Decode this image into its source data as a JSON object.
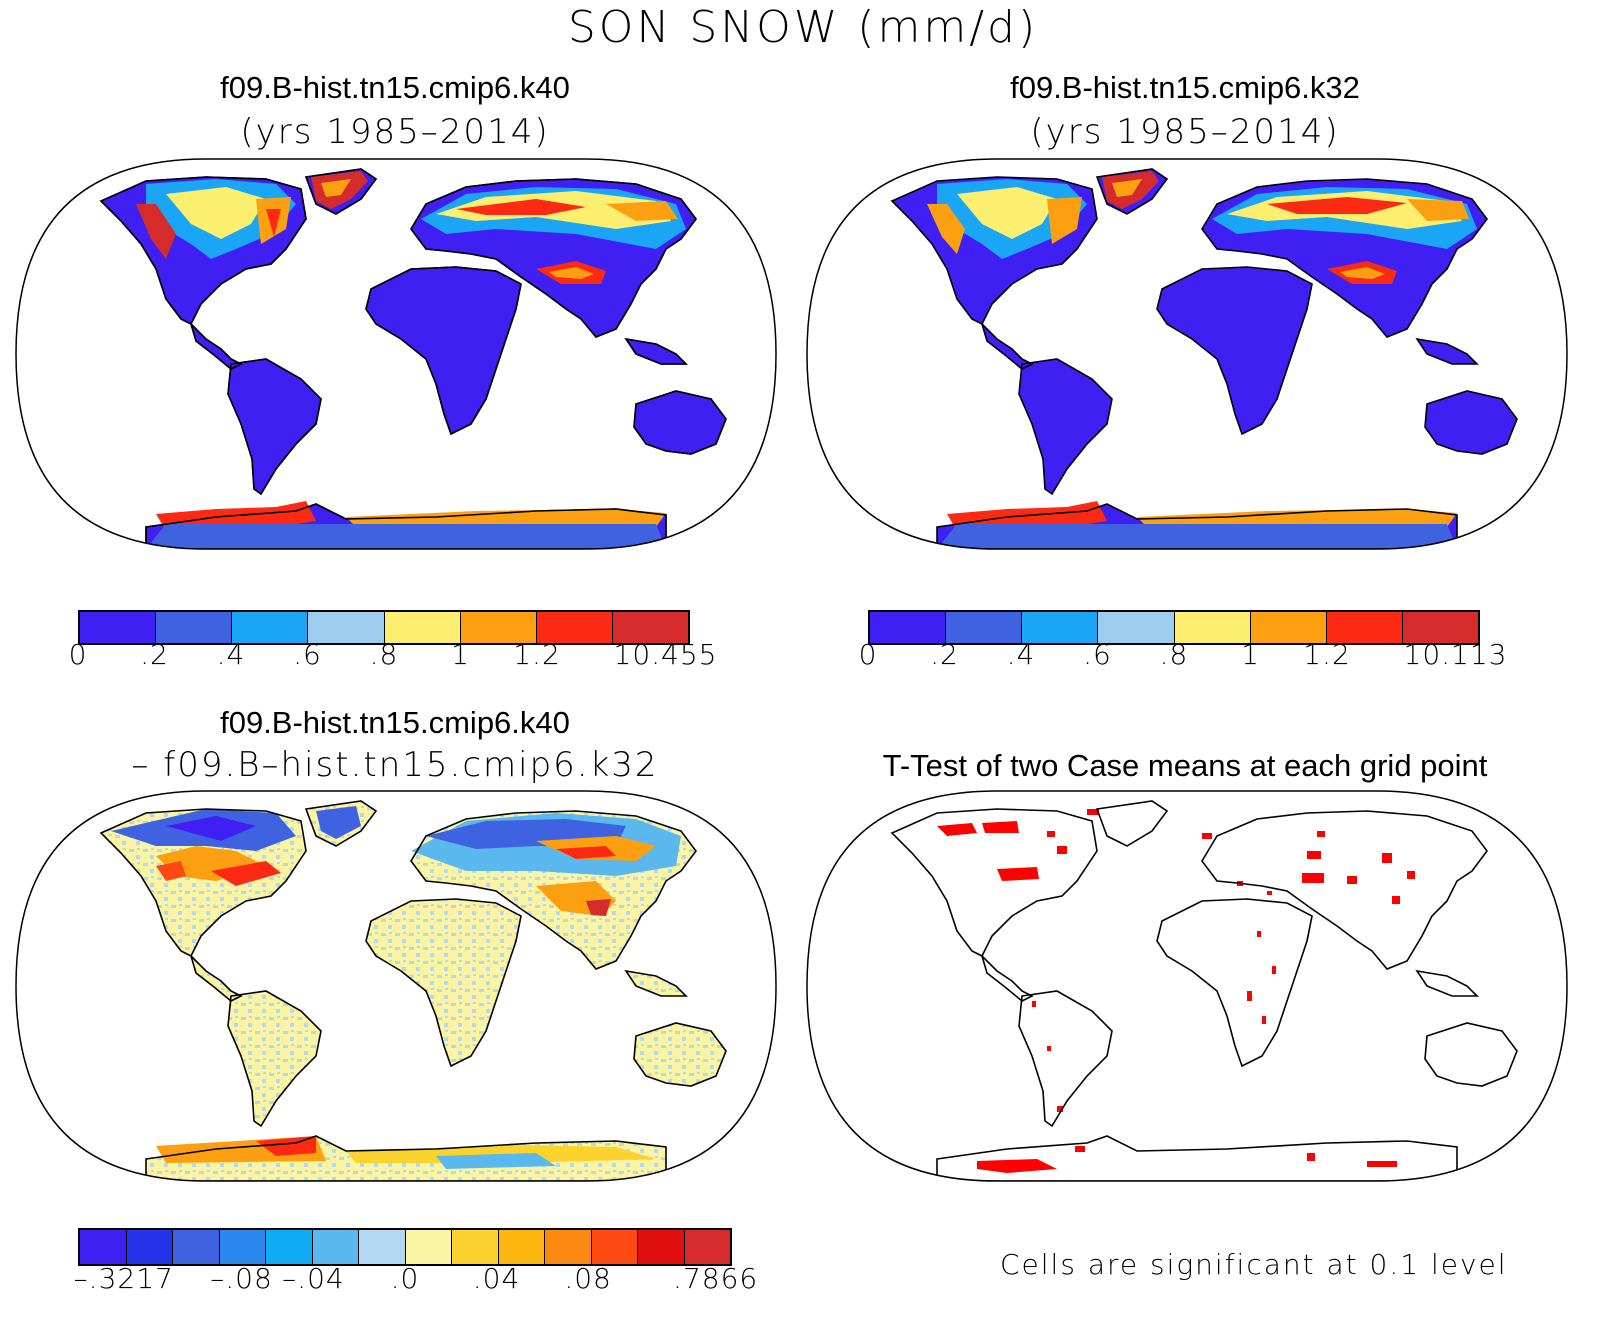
{
  "title": "SON SNOW (mm/d)",
  "panels": {
    "top_left": {
      "title": "f09.B-hist.tn15.cmip6.k40",
      "subtitle": "(yrs 1985–2014)"
    },
    "top_right": {
      "title": "f09.B-hist.tn15.cmip6.k32",
      "subtitle": "(yrs 1985–2014)"
    },
    "bottom_left": {
      "title": "f09.B-hist.tn15.cmip6.k40",
      "subtitle": "– f09.B–hist.tn15.cmip6.k32"
    },
    "bottom_right": {
      "title": "T-Test of two Case means at each grid point",
      "footnote": "Cells are significant at 0.1 level"
    }
  },
  "colorbars": {
    "top_left": {
      "colors": [
        "#3f1ff2",
        "#3f63e0",
        "#1aa6f5",
        "#9dcdee",
        "#fcef70",
        "#fca012",
        "#fc2a12",
        "#d62b2b"
      ],
      "labels": [
        "0",
        ".2",
        ".4",
        ".6",
        ".8",
        "1",
        "1.2",
        "10.455"
      ]
    },
    "top_right": {
      "colors": [
        "#3f1ff2",
        "#3f63e0",
        "#1aa6f5",
        "#9dcdee",
        "#fcef70",
        "#fca012",
        "#fc2a12",
        "#d62b2b"
      ],
      "labels": [
        "0",
        ".2",
        ".4",
        ".6",
        ".8",
        "1",
        "1.2",
        "10.113"
      ]
    },
    "bottom_left": {
      "colors": [
        "#3f1ff2",
        "#2233e8",
        "#3f63e0",
        "#2a88ee",
        "#10acf3",
        "#5ab8ee",
        "#b1daf2",
        "#fbf5a3",
        "#fcd32e",
        "#fcb60f",
        "#fc8a12",
        "#fc4a12",
        "#e01010",
        "#d62b2b"
      ],
      "labels": [
        "–.3217",
        "–.08",
        "–.04",
        ".0",
        ".04",
        ".08",
        ".7866"
      ]
    }
  },
  "map_colors": {
    "land_low": "#3f1ff2",
    "diff_base": "#fbf5a3",
    "diff_speckle": "#b1daf2",
    "significant": "#ff0000"
  }
}
